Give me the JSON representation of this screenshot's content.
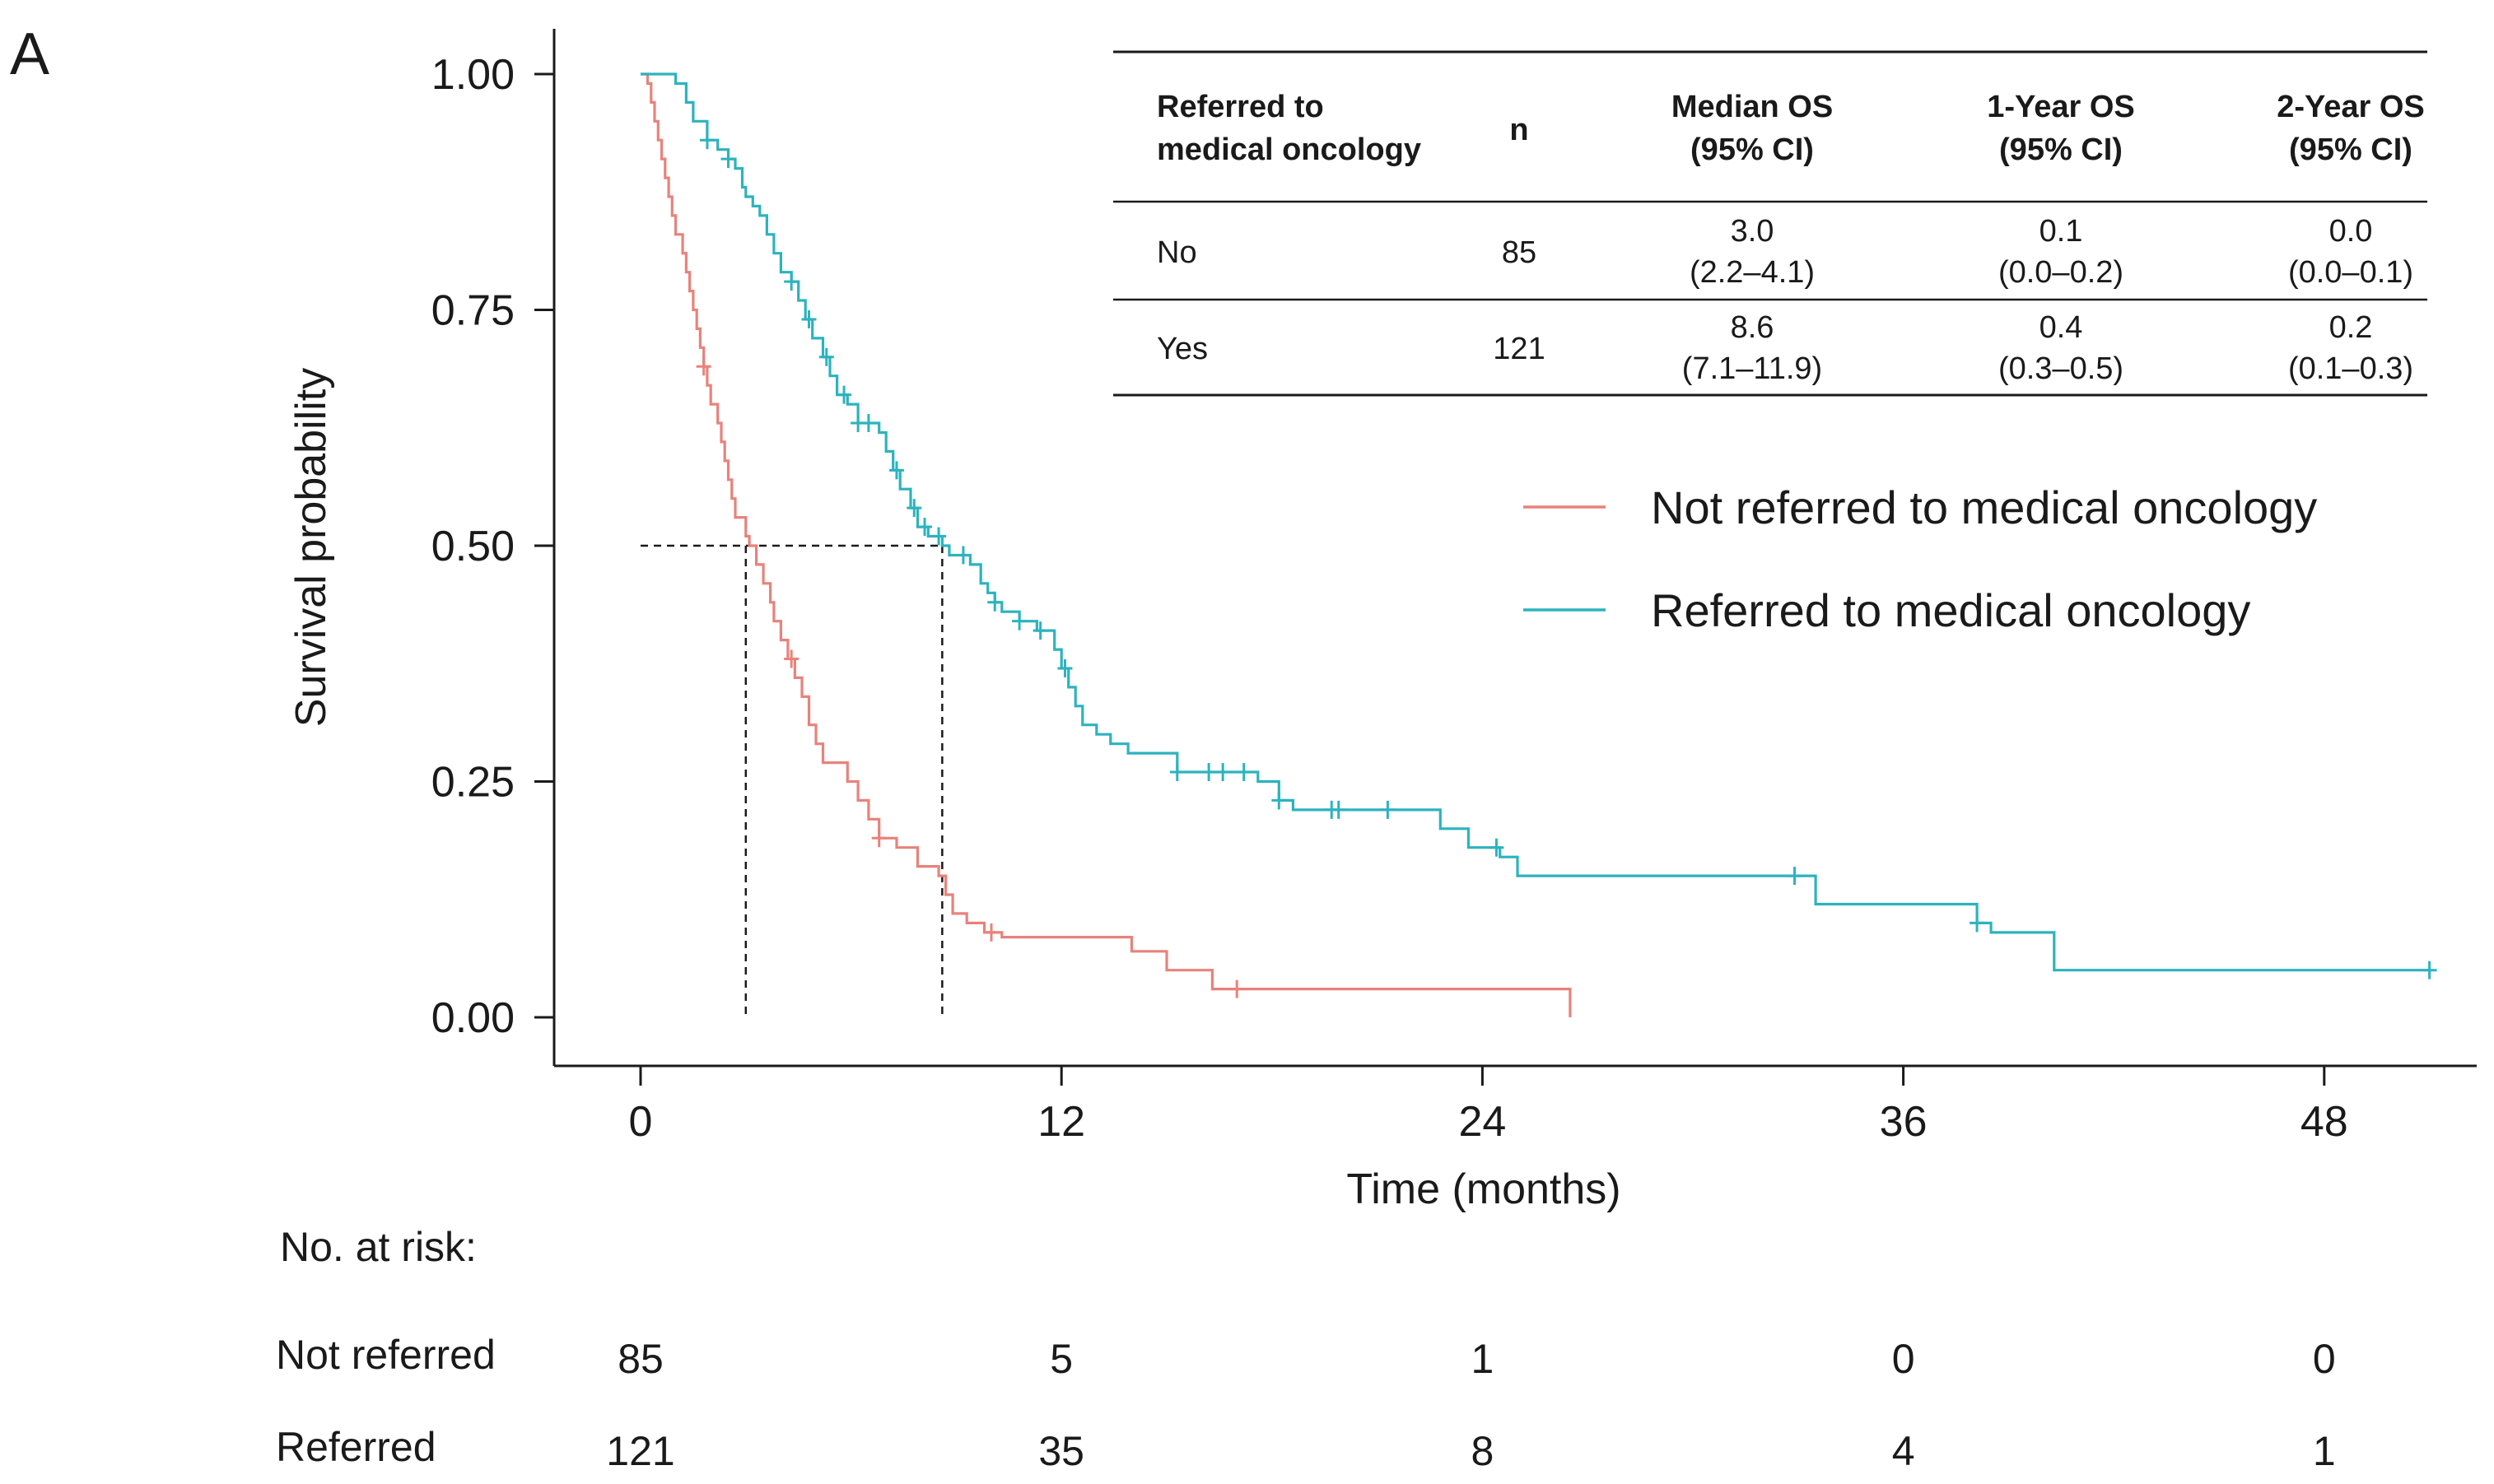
{
  "panel_label": "A",
  "colors": {
    "not_referred": "#E8827B",
    "referred": "#2CB3BE",
    "axis": "#1a1a1a",
    "reference": "#1a1a1a"
  },
  "chart_data": {
    "type": "line",
    "subtype": "kaplan-meier step survival curve",
    "xlabel": "Time (months)",
    "ylabel": "Survival probability",
    "xlim": [
      -2.5,
      52
    ],
    "ylim": [
      -0.05,
      1.05
    ],
    "xticks": [
      0,
      12,
      24,
      36,
      48
    ],
    "yticks": [
      0.0,
      0.25,
      0.5,
      0.75,
      1.0
    ],
    "ytick_labels": [
      "0.00",
      "0.25",
      "0.50",
      "0.75",
      "1.00"
    ],
    "grid": false,
    "legend_position": "right",
    "median_reference_lines": {
      "y": 0.5,
      "x": [
        3.0,
        8.6
      ]
    },
    "series": [
      {
        "name": "Not referred to medical oncology",
        "color_key": "not_referred",
        "steps": [
          [
            0,
            1.0
          ],
          [
            0.2,
            0.99
          ],
          [
            0.3,
            0.97
          ],
          [
            0.4,
            0.95
          ],
          [
            0.5,
            0.93
          ],
          [
            0.6,
            0.91
          ],
          [
            0.7,
            0.89
          ],
          [
            0.8,
            0.87
          ],
          [
            0.9,
            0.85
          ],
          [
            1.0,
            0.83
          ],
          [
            1.2,
            0.81
          ],
          [
            1.3,
            0.79
          ],
          [
            1.4,
            0.77
          ],
          [
            1.5,
            0.75
          ],
          [
            1.6,
            0.73
          ],
          [
            1.7,
            0.71
          ],
          [
            1.8,
            0.69
          ],
          [
            1.9,
            0.67
          ],
          [
            2.0,
            0.65
          ],
          [
            2.2,
            0.63
          ],
          [
            2.3,
            0.61
          ],
          [
            2.4,
            0.59
          ],
          [
            2.5,
            0.57
          ],
          [
            2.6,
            0.55
          ],
          [
            2.7,
            0.53
          ],
          [
            3.0,
            0.51
          ],
          [
            3.1,
            0.5
          ],
          [
            3.3,
            0.48
          ],
          [
            3.5,
            0.46
          ],
          [
            3.7,
            0.44
          ],
          [
            3.8,
            0.42
          ],
          [
            4.0,
            0.4
          ],
          [
            4.2,
            0.38
          ],
          [
            4.4,
            0.36
          ],
          [
            4.6,
            0.34
          ],
          [
            4.8,
            0.31
          ],
          [
            5.0,
            0.29
          ],
          [
            5.2,
            0.27
          ],
          [
            5.5,
            0.27
          ],
          [
            5.9,
            0.25
          ],
          [
            6.2,
            0.23
          ],
          [
            6.5,
            0.21
          ],
          [
            6.8,
            0.19
          ],
          [
            7.3,
            0.18
          ],
          [
            7.9,
            0.16
          ],
          [
            8.5,
            0.15
          ],
          [
            8.7,
            0.13
          ],
          [
            8.9,
            0.11
          ],
          [
            9.3,
            0.1
          ],
          [
            9.8,
            0.09
          ],
          [
            10.3,
            0.085
          ],
          [
            14.0,
            0.07
          ],
          [
            15.0,
            0.05
          ],
          [
            16.3,
            0.03
          ],
          [
            26.0,
            0.03
          ],
          [
            26.5,
            0.0
          ]
        ],
        "censor_times": [
          1.8,
          4.3,
          6.8,
          10.0,
          17.0
        ]
      },
      {
        "name": "Referred to medical oncology",
        "color_key": "referred",
        "steps": [
          [
            0,
            1.0
          ],
          [
            1.0,
            0.99
          ],
          [
            1.3,
            0.97
          ],
          [
            1.5,
            0.95
          ],
          [
            1.9,
            0.93
          ],
          [
            2.2,
            0.92
          ],
          [
            2.5,
            0.91
          ],
          [
            2.7,
            0.9
          ],
          [
            2.9,
            0.88
          ],
          [
            3.0,
            0.87
          ],
          [
            3.2,
            0.86
          ],
          [
            3.4,
            0.85
          ],
          [
            3.6,
            0.83
          ],
          [
            3.8,
            0.81
          ],
          [
            4.0,
            0.79
          ],
          [
            4.3,
            0.78
          ],
          [
            4.5,
            0.76
          ],
          [
            4.7,
            0.74
          ],
          [
            4.9,
            0.72
          ],
          [
            5.2,
            0.7
          ],
          [
            5.4,
            0.68
          ],
          [
            5.6,
            0.66
          ],
          [
            5.9,
            0.65
          ],
          [
            6.2,
            0.63
          ],
          [
            6.8,
            0.62
          ],
          [
            7.0,
            0.6
          ],
          [
            7.2,
            0.58
          ],
          [
            7.4,
            0.56
          ],
          [
            7.7,
            0.54
          ],
          [
            7.9,
            0.52
          ],
          [
            8.2,
            0.51
          ],
          [
            8.6,
            0.5
          ],
          [
            8.8,
            0.49
          ],
          [
            9.4,
            0.48
          ],
          [
            9.7,
            0.46
          ],
          [
            9.9,
            0.45
          ],
          [
            10.1,
            0.44
          ],
          [
            10.3,
            0.43
          ],
          [
            10.8,
            0.42
          ],
          [
            11.3,
            0.41
          ],
          [
            11.8,
            0.39
          ],
          [
            12.0,
            0.37
          ],
          [
            12.2,
            0.35
          ],
          [
            12.4,
            0.33
          ],
          [
            12.6,
            0.31
          ],
          [
            13.0,
            0.3
          ],
          [
            13.4,
            0.29
          ],
          [
            13.9,
            0.28
          ],
          [
            15.3,
            0.26
          ],
          [
            16.2,
            0.26
          ],
          [
            17.6,
            0.25
          ],
          [
            18.2,
            0.23
          ],
          [
            18.6,
            0.22
          ],
          [
            22.8,
            0.2
          ],
          [
            23.6,
            0.18
          ],
          [
            24.5,
            0.17
          ],
          [
            25.0,
            0.15
          ],
          [
            33.0,
            0.15
          ],
          [
            33.5,
            0.12
          ],
          [
            38.1,
            0.1
          ],
          [
            38.5,
            0.09
          ],
          [
            40.1,
            0.09
          ],
          [
            40.3,
            0.05
          ],
          [
            51.0,
            0.05
          ]
        ],
        "censor_times": [
          1.9,
          2.5,
          4.3,
          4.8,
          5.3,
          5.8,
          6.2,
          6.5,
          7.3,
          7.8,
          8.1,
          8.5,
          9.2,
          10.1,
          10.8,
          11.4,
          12.1,
          15.3,
          16.2,
          16.6,
          17.2,
          18.2,
          19.7,
          19.9,
          21.3,
          24.4,
          32.9,
          38.1,
          51.0
        ]
      }
    ],
    "legend": [
      {
        "label": "Not referred to medical oncology",
        "color_key": "not_referred"
      },
      {
        "label": "Referred to medical oncology",
        "color_key": "referred"
      }
    ]
  },
  "summary_table": {
    "headers": [
      "Referred to\nmedical oncology",
      "n",
      "Median OS\n(95% CI)",
      "1-Year OS\n(95% CI)",
      "2-Year OS\n(95% CI)"
    ],
    "rows": [
      [
        "No",
        "85",
        "3.0\n(2.2–4.1)",
        "0.1\n(0.0–0.2)",
        "0.0\n(0.0–0.1)"
      ],
      [
        "Yes",
        "121",
        "8.6\n(7.1–11.9)",
        "0.4\n(0.3–0.5)",
        "0.2\n(0.1–0.3)"
      ]
    ]
  },
  "risk_table": {
    "title": "No. at risk:",
    "rows": [
      {
        "label": "Not referred",
        "values": [
          "85",
          "5",
          "1",
          "0",
          "0"
        ]
      },
      {
        "label": "Referred",
        "values": [
          "121",
          "35",
          "8",
          "4",
          "1"
        ]
      }
    ]
  }
}
